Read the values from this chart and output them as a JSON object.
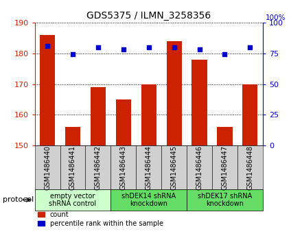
{
  "title": "GDS5375 / ILMN_3258356",
  "samples": [
    "GSM1486440",
    "GSM1486441",
    "GSM1486442",
    "GSM1486443",
    "GSM1486444",
    "GSM1486445",
    "GSM1486446",
    "GSM1486447",
    "GSM1486448"
  ],
  "counts": [
    186,
    156,
    169,
    165,
    170,
    184,
    178,
    156,
    170
  ],
  "percentiles": [
    81,
    74,
    80,
    78,
    80,
    80,
    78,
    74,
    80
  ],
  "ylim_left": [
    150,
    190
  ],
  "ylim_right": [
    0,
    100
  ],
  "yticks_left": [
    150,
    160,
    170,
    180,
    190
  ],
  "yticks_right": [
    0,
    25,
    50,
    75,
    100
  ],
  "bar_color": "#cc2200",
  "dot_color": "#0000cc",
  "groups": [
    {
      "label": "empty vector\nshRNA control",
      "start": 0,
      "end": 3,
      "color": "#ccffcc"
    },
    {
      "label": "shDEK14 shRNA\nknockdown",
      "start": 3,
      "end": 6,
      "color": "#66dd66"
    },
    {
      "label": "shDEK17 shRNA\nknockdown",
      "start": 6,
      "end": 9,
      "color": "#66dd66"
    }
  ],
  "legend_count_label": "count",
  "legend_percentile_label": "percentile rank within the sample",
  "protocol_label": "protocol",
  "title_fontsize": 10,
  "tick_fontsize": 7,
  "label_fontsize": 7
}
